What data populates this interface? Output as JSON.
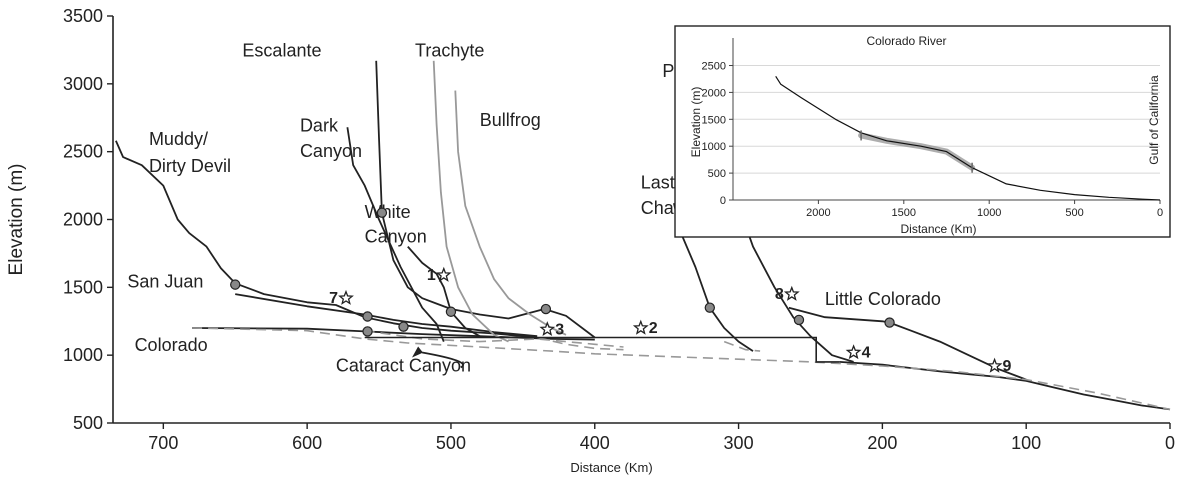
{
  "chart_data": {
    "type": "line",
    "xlabel": "Distance (Km)",
    "ylabel": "Elevation (m)",
    "xlim": [
      735,
      0
    ],
    "ylim": [
      500,
      3500
    ],
    "x_ticks": [
      "700",
      "600",
      "500",
      "400",
      "300",
      "200",
      "100",
      "0"
    ],
    "y_ticks": [
      "500",
      "1000",
      "1500",
      "2000",
      "2500",
      "3000",
      "3500"
    ],
    "series": [
      {
        "name": "Colorado",
        "color": "#222222",
        "style": "solid",
        "points": [
          [
            680,
            1200
          ],
          [
            600,
            1195
          ],
          [
            560,
            1175
          ],
          [
            520,
            1155
          ],
          [
            480,
            1140
          ],
          [
            430,
            1120
          ],
          [
            400,
            1115
          ]
        ]
      },
      {
        "name": "Colorado",
        "color": "#222222",
        "style": "solid",
        "points": [
          [
            230,
            950
          ],
          [
            200,
            930
          ],
          [
            160,
            880
          ],
          [
            140,
            860
          ],
          [
            120,
            840
          ],
          [
            100,
            810
          ],
          [
            80,
            760
          ],
          [
            60,
            710
          ],
          [
            40,
            670
          ],
          [
            20,
            630
          ],
          [
            0,
            600
          ]
        ]
      },
      {
        "name": "Muddy/ Dirty Devil",
        "color": "#222222",
        "style": "solid",
        "points": [
          [
            733,
            2580
          ],
          [
            728,
            2460
          ],
          [
            715,
            2400
          ],
          [
            700,
            2250
          ],
          [
            690,
            2000
          ],
          [
            682,
            1900
          ],
          [
            670,
            1800
          ],
          [
            660,
            1640
          ],
          [
            650,
            1530
          ],
          [
            630,
            1450
          ],
          [
            600,
            1390
          ],
          [
            580,
            1370
          ],
          [
            560,
            1280
          ],
          [
            540,
            1235
          ],
          [
            520,
            1200
          ],
          [
            500,
            1180
          ],
          [
            470,
            1160
          ],
          [
            440,
            1130
          ]
        ]
      },
      {
        "name": "San Juan",
        "color": "#222222",
        "style": "solid",
        "points": [
          [
            650,
            1450
          ],
          [
            600,
            1360
          ],
          [
            560,
            1300
          ],
          [
            540,
            1260
          ],
          [
            520,
            1230
          ],
          [
            500,
            1210
          ],
          [
            470,
            1170
          ],
          [
            440,
            1140
          ]
        ]
      },
      {
        "name": "Escalante",
        "color": "#222222",
        "style": "solid",
        "points": [
          [
            552,
            3170
          ],
          [
            550,
            2600
          ],
          [
            548,
            2050
          ],
          [
            540,
            1700
          ],
          [
            530,
            1500
          ],
          [
            520,
            1420
          ],
          [
            510,
            1380
          ],
          [
            500,
            1340
          ],
          [
            480,
            1300
          ],
          [
            460,
            1270
          ],
          [
            435,
            1340
          ],
          [
            420,
            1290
          ],
          [
            400,
            1130
          ]
        ]
      },
      {
        "name": "Dark Canyon",
        "color": "#222222",
        "style": "solid",
        "points": [
          [
            572,
            2680
          ],
          [
            568,
            2400
          ],
          [
            560,
            2250
          ],
          [
            550,
            2000
          ],
          [
            535,
            1650
          ],
          [
            520,
            1350
          ],
          [
            510,
            1230
          ],
          [
            505,
            1100
          ]
        ]
      },
      {
        "name": "White Canyon",
        "color": "#222222",
        "style": "solid",
        "points": [
          [
            530,
            1800
          ],
          [
            520,
            1680
          ],
          [
            510,
            1600
          ],
          [
            505,
            1500
          ],
          [
            500,
            1320
          ],
          [
            490,
            1200
          ],
          [
            480,
            1140
          ]
        ]
      },
      {
        "name": "Trachyte",
        "color": "#999999",
        "style": "solid",
        "points": [
          [
            512,
            3170
          ],
          [
            510,
            2700
          ],
          [
            507,
            2200
          ],
          [
            503,
            1800
          ],
          [
            495,
            1500
          ],
          [
            485,
            1300
          ],
          [
            470,
            1150
          ],
          [
            460,
            1100
          ]
        ]
      },
      {
        "name": "Bullfrog",
        "color": "#999999",
        "style": "solid",
        "points": [
          [
            497,
            2950
          ],
          [
            495,
            2500
          ],
          [
            490,
            2100
          ],
          [
            480,
            1800
          ],
          [
            470,
            1560
          ],
          [
            460,
            1420
          ],
          [
            445,
            1300
          ],
          [
            430,
            1200
          ],
          [
            420,
            1150
          ]
        ]
      },
      {
        "name": "Paria",
        "color": "#222222",
        "style": "solid",
        "points": [
          [
            313,
            3110
          ],
          [
            310,
            2600
          ],
          [
            300,
            2100
          ],
          [
            290,
            1800
          ],
          [
            275,
            1500
          ],
          [
            262,
            1280
          ],
          [
            250,
            1140
          ],
          [
            235,
            1000
          ],
          [
            220,
            950
          ]
        ]
      },
      {
        "name": "Last Chance",
        "color": "#222222",
        "style": "solid",
        "points": [
          [
            345,
            2120
          ],
          [
            340,
            1900
          ],
          [
            330,
            1650
          ],
          [
            320,
            1350
          ],
          [
            310,
            1200
          ],
          [
            300,
            1100
          ],
          [
            290,
            1030
          ]
        ]
      },
      {
        "name": "Little Colorado",
        "color": "#222222",
        "style": "solid",
        "points": [
          [
            265,
            1350
          ],
          [
            240,
            1280
          ],
          [
            200,
            1250
          ],
          [
            195,
            1240
          ],
          [
            180,
            1180
          ],
          [
            160,
            1100
          ],
          [
            140,
            1000
          ],
          [
            120,
            900
          ],
          [
            100,
            820
          ]
        ]
      },
      {
        "name": "Cataract Canyon",
        "color": "#999999",
        "style": "dashed",
        "points": [
          [
            680,
            1200
          ],
          [
            600,
            1180
          ],
          [
            560,
            1120
          ],
          [
            530,
            1090
          ],
          [
            480,
            1060
          ],
          [
            430,
            1030
          ],
          [
            400,
            1010
          ],
          [
            350,
            990
          ],
          [
            300,
            970
          ],
          [
            250,
            950
          ],
          [
            200,
            920
          ],
          [
            150,
            880
          ],
          [
            100,
            820
          ],
          [
            50,
            720
          ],
          [
            0,
            600
          ]
        ]
      },
      {
        "name": "Bullfrog",
        "color": "#999999",
        "style": "dashed",
        "points": [
          [
            560,
            1180
          ],
          [
            520,
            1120
          ],
          [
            480,
            1100
          ],
          [
            440,
            1120
          ],
          [
            400,
            1080
          ],
          [
            380,
            1060
          ]
        ]
      },
      {
        "name": "Last Chance",
        "color": "#999999",
        "style": "dashed",
        "points": [
          [
            440,
            1130
          ],
          [
            420,
            1080
          ],
          [
            400,
            1050
          ],
          [
            380,
            1040
          ]
        ]
      },
      {
        "name": "Last Chance",
        "color": "#999999",
        "style": "dashed",
        "points": [
          [
            310,
            1100
          ],
          [
            295,
            1040
          ],
          [
            285,
            1030
          ]
        ]
      }
    ],
    "step_line": {
      "color": "#222222",
      "points": [
        [
          560,
          1130
        ],
        [
          246,
          1130
        ],
        [
          246,
          950
        ],
        [
          230,
          950
        ]
      ]
    },
    "river_labels": [
      {
        "text": "Muddy/",
        "x": 710,
        "y": 2550
      },
      {
        "text": "Dirty Devil",
        "x": 710,
        "y": 2350
      },
      {
        "text": "San Juan",
        "x": 725,
        "y": 1500
      },
      {
        "text": "Colorado",
        "x": 720,
        "y": 1030
      },
      {
        "text": "Cataract Canyon",
        "x": 580,
        "y": 880
      },
      {
        "text": "Escalante",
        "x": 645,
        "y": 3200
      },
      {
        "text": "Dark",
        "x": 605,
        "y": 2650
      },
      {
        "text": "Canyon",
        "x": 605,
        "y": 2460
      },
      {
        "text": "White",
        "x": 560,
        "y": 2010
      },
      {
        "text": "Canyon",
        "x": 560,
        "y": 1830
      },
      {
        "text": "Trachyte",
        "x": 525,
        "y": 3200
      },
      {
        "text": "Bullfrog",
        "x": 480,
        "y": 2690
      },
      {
        "text": "Paria",
        "x": 353,
        "y": 3050
      },
      {
        "text": "Last",
        "x": 368,
        "y": 2230
      },
      {
        "text": "Chance",
        "x": 368,
        "y": 2040
      },
      {
        "text": "Little Colorado",
        "x": 240,
        "y": 1370
      }
    ],
    "dots": [
      [
        650,
        1520
      ],
      [
        548,
        2050
      ],
      [
        558,
        1285
      ],
      [
        533,
        1210
      ],
      [
        558,
        1175
      ],
      [
        500,
        1320
      ],
      [
        434,
        1340
      ],
      [
        320,
        1350
      ],
      [
        258,
        1260
      ],
      [
        195,
        1240
      ]
    ],
    "sites": [
      {
        "label": "1",
        "x": 505,
        "y": 1590
      },
      {
        "label": "2",
        "x": 368,
        "y": 1200
      },
      {
        "label": "3",
        "x": 433,
        "y": 1190
      },
      {
        "label": "4",
        "x": 220,
        "y": 1020
      },
      {
        "label": "7",
        "x": 573,
        "y": 1420
      },
      {
        "label": "8",
        "x": 263,
        "y": 1450
      },
      {
        "label": "9",
        "x": 122,
        "y": 920
      }
    ],
    "inset": {
      "title": "Colorado River",
      "xlabel": "Distance (Km)",
      "ylabel": "Elevation (m)",
      "side_label": "Gulf of California",
      "xlim": [
        2500,
        0
      ],
      "ylim": [
        0,
        2900
      ],
      "x_ticks": [
        "2000",
        "1500",
        "1000",
        "500",
        "0"
      ],
      "y_ticks": [
        "0",
        "500",
        "1000",
        "1500",
        "2000",
        "2500"
      ],
      "line": [
        [
          2250,
          2300
        ],
        [
          2220,
          2150
        ],
        [
          2100,
          1900
        ],
        [
          1900,
          1500
        ],
        [
          1750,
          1250
        ],
        [
          1600,
          1100
        ],
        [
          1400,
          1000
        ],
        [
          1250,
          900
        ],
        [
          1100,
          600
        ],
        [
          900,
          300
        ],
        [
          700,
          180
        ],
        [
          500,
          100
        ],
        [
          300,
          50
        ],
        [
          100,
          15
        ],
        [
          0,
          0
        ]
      ],
      "highlight": [
        [
          1750,
          1200
        ],
        [
          1600,
          1100
        ],
        [
          1400,
          1000
        ],
        [
          1250,
          900
        ],
        [
          1100,
          600
        ]
      ]
    }
  }
}
